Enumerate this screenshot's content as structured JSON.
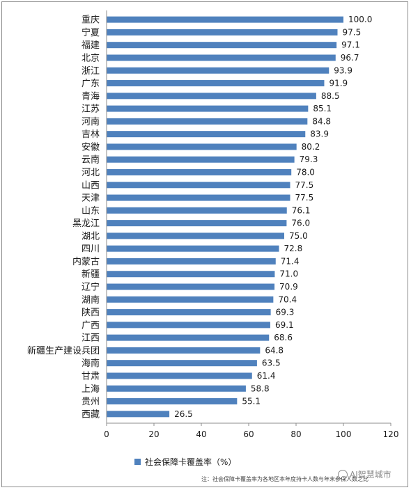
{
  "chart_data": {
    "type": "bar",
    "orientation": "horizontal",
    "categories": [
      "重庆",
      "宁夏",
      "福建",
      "北京",
      "浙江",
      "广东",
      "青海",
      "江苏",
      "河南",
      "吉林",
      "安徽",
      "云南",
      "河北",
      "山西",
      "天津",
      "山东",
      "黑龙江",
      "湖北",
      "四川",
      "内蒙古",
      "新疆",
      "辽宁",
      "湖南",
      "陕西",
      "广西",
      "江西",
      "新疆生产建设兵团",
      "海南",
      "甘肃",
      "上海",
      "贵州",
      "西藏"
    ],
    "values": [
      100.0,
      97.5,
      97.1,
      96.7,
      93.9,
      91.9,
      88.5,
      85.1,
      84.8,
      83.9,
      80.2,
      79.3,
      78.0,
      77.5,
      77.5,
      76.1,
      76.0,
      75.0,
      72.8,
      71.4,
      71.0,
      70.9,
      70.4,
      69.3,
      69.1,
      68.6,
      64.8,
      63.5,
      61.4,
      58.8,
      55.1,
      26.5
    ],
    "value_labels": [
      "100.0",
      "97.5",
      "97.1",
      "96.7",
      "93.9",
      "91.9",
      "88.5",
      "85.1",
      "84.8",
      "83.9",
      "80.2",
      "79.3",
      "78.0",
      "77.5",
      "77.5",
      "76.1",
      "76.0",
      "75.0",
      "72.8",
      "71.4",
      "71.0",
      "70.9",
      "70.4",
      "69.3",
      "69.1",
      "68.6",
      "64.8",
      "63.5",
      "61.4",
      "58.8",
      "55.1",
      "26.5"
    ],
    "series": [
      {
        "name": "社会保障卡覆盖率（%）"
      }
    ],
    "xlim": [
      0,
      120
    ],
    "xticks": [
      "0",
      "20",
      "40",
      "60",
      "80",
      "100",
      "120"
    ],
    "grid": false,
    "legend_position": "bottom",
    "bar_color": "#4f81bd"
  },
  "footnote": "注：社会保障卡覆盖率为各地区本年度持卡人数与年末参保人数之比",
  "watermark": "AI智慧城市"
}
